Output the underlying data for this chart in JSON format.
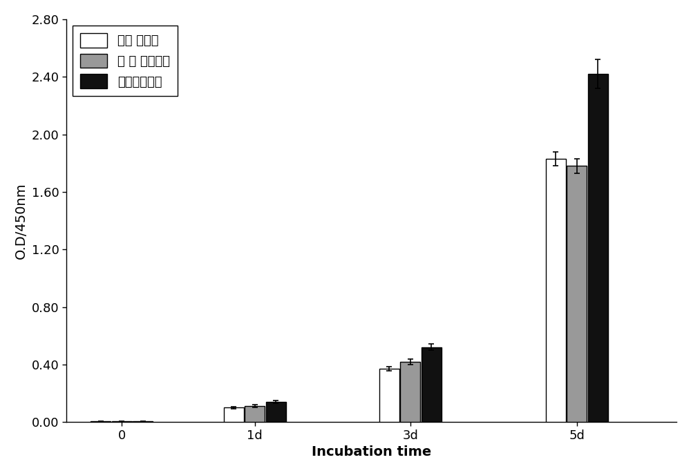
{
  "categories": [
    "0",
    "1d",
    "3d",
    "5d"
  ],
  "series": {
    "光滑钓表面": [
      0.005,
      0.1,
      0.37,
      1.83
    ],
    "纳米管钓表面": [
      0.005,
      0.11,
      0.42,
      1.78
    ],
    "复合涂层表面": [
      0.005,
      0.14,
      0.52,
      2.42
    ]
  },
  "errors": {
    "光滑钓表面": [
      0.001,
      0.008,
      0.015,
      0.05
    ],
    "纳米管钓表面": [
      0.001,
      0.009,
      0.02,
      0.05
    ],
    "复合涂层表面": [
      0.001,
      0.01,
      0.022,
      0.1
    ]
  },
  "colors": {
    "光滑钓表面": "#ffffff",
    "纳米管钓表面": "#999999",
    "复合涂层表面": "#111111"
  },
  "edgecolors": {
    "光滑钓表面": "black",
    "纳米管钓表面": "black",
    "复合涂层表面": "black"
  },
  "legend_labels": {
    "光滑钓表面": "光滑 钓表面",
    "纳米管钓表面": "纳 米 管钓表面",
    "复合涂层表面": "复合涂层表面"
  },
  "ylabel": "O.D/450nm",
  "xlabel": "Incubation time",
  "ylim": [
    0.0,
    2.8
  ],
  "yticks": [
    0.0,
    0.4,
    0.8,
    1.2,
    1.6,
    2.0,
    2.4,
    2.8
  ],
  "ytick_labels": [
    "0.00",
    "0.40",
    "0.80",
    "1.20",
    "1.60",
    "2.00",
    "2.40",
    "2.80"
  ],
  "bar_width": 0.18,
  "x_positions": [
    0.0,
    1.2,
    2.6,
    4.1
  ],
  "legend_loc": "upper left",
  "font_size": 13,
  "label_font_size": 14,
  "xlim": [
    -0.5,
    5.0
  ]
}
